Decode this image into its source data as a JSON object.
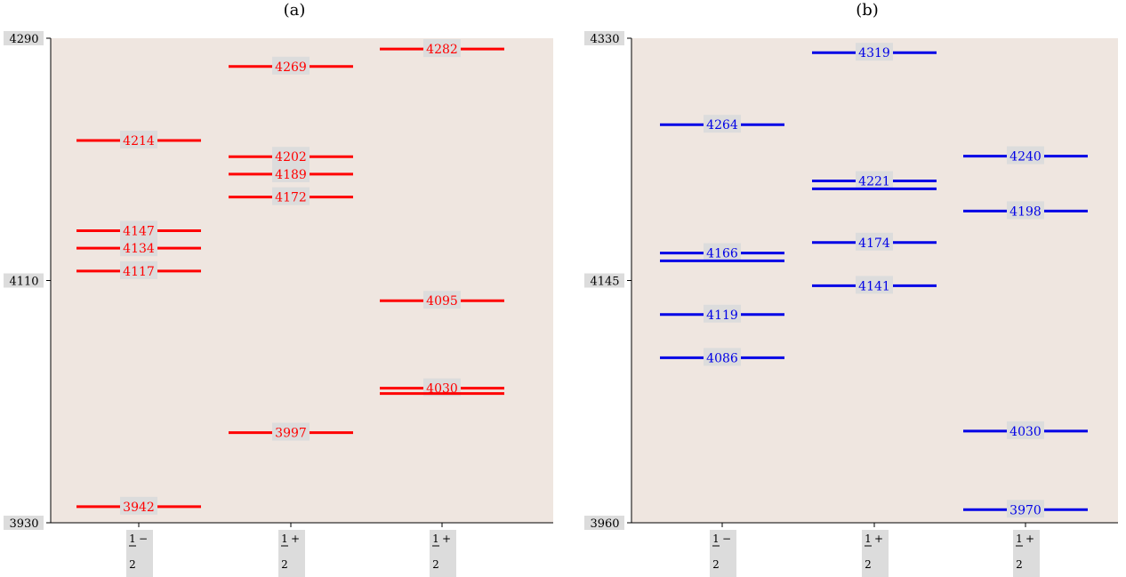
{
  "chart_data": [
    {
      "type": "levels",
      "title": "(a)",
      "color": "#ff0000",
      "ylim": [
        3930,
        4290
      ],
      "yticks": [
        "4290",
        "4110",
        "3930"
      ],
      "categories": [
        {
          "num": "1",
          "sign": "−",
          "den": "2"
        },
        {
          "num": "1",
          "sign": "+",
          "den": "2"
        },
        {
          "num": "1",
          "sign": "+",
          "den": "2"
        }
      ],
      "levels": [
        [
          {
            "value": 4214,
            "label": "4214"
          },
          {
            "value": 4147,
            "label": "4147"
          },
          {
            "value": 4134,
            "label": "4134"
          },
          {
            "value": 4117,
            "label": "4117"
          },
          {
            "value": 3942,
            "label": "3942"
          }
        ],
        [
          {
            "value": 4269,
            "label": "4269"
          },
          {
            "value": 4202,
            "label": "4202"
          },
          {
            "value": 4189,
            "label": "4189"
          },
          {
            "value": 4172,
            "label": "4172"
          },
          {
            "value": 3997,
            "label": "3997"
          }
        ],
        [
          {
            "value": 4282,
            "label": "4282"
          },
          {
            "value": 4095,
            "label": "4095"
          },
          {
            "value": 4030,
            "label": "4030"
          },
          {
            "value": 4026,
            "label": ""
          }
        ]
      ]
    },
    {
      "type": "levels",
      "title": "(b)",
      "color": "#0000e6",
      "ylim": [
        3960,
        4330
      ],
      "yticks": [
        "4330",
        "4145",
        "3960"
      ],
      "categories": [
        {
          "num": "1",
          "sign": "−",
          "den": "2"
        },
        {
          "num": "1",
          "sign": "+",
          "den": "2"
        },
        {
          "num": "1",
          "sign": "+",
          "den": "2"
        }
      ],
      "levels": [
        [
          {
            "value": 4264,
            "label": "4264"
          },
          {
            "value": 4166,
            "label": "4166"
          },
          {
            "value": 4160,
            "label": ""
          },
          {
            "value": 4119,
            "label": "4119"
          },
          {
            "value": 4086,
            "label": "4086"
          }
        ],
        [
          {
            "value": 4319,
            "label": "4319"
          },
          {
            "value": 4221,
            "label": "4221"
          },
          {
            "value": 4215,
            "label": ""
          },
          {
            "value": 4174,
            "label": "4174"
          },
          {
            "value": 4141,
            "label": "4141"
          }
        ],
        [
          {
            "value": 4240,
            "label": "4240"
          },
          {
            "value": 4198,
            "label": "4198"
          },
          {
            "value": 4030,
            "label": "4030"
          },
          {
            "value": 3970,
            "label": "3970"
          }
        ]
      ]
    }
  ]
}
